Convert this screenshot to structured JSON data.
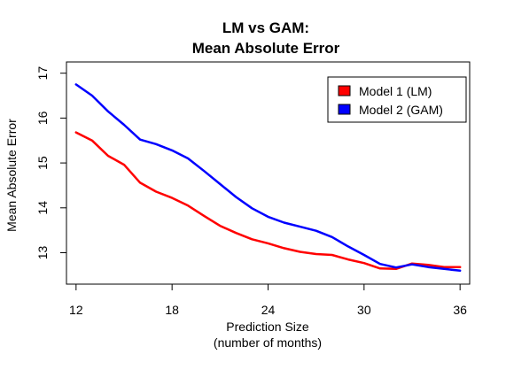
{
  "chart_data": {
    "type": "line",
    "title": [
      "LM vs GAM:",
      "Mean Absolute Error"
    ],
    "xlabel": [
      "Prediction Size",
      "(number of months)"
    ],
    "ylabel": "Mean Absolute Error",
    "xlim": [
      11.4,
      36.6
    ],
    "ylim": [
      12.3,
      17.25
    ],
    "x_ticks": [
      12,
      18,
      24,
      30,
      36
    ],
    "y_ticks": [
      13,
      14,
      15,
      16,
      17
    ],
    "grid": false,
    "legend_position": "top-right",
    "x": [
      12,
      13,
      14,
      15,
      16,
      17,
      18,
      19,
      20,
      21,
      22,
      23,
      24,
      25,
      26,
      27,
      28,
      29,
      30,
      31,
      32,
      33,
      34,
      35,
      36
    ],
    "series": [
      {
        "name": "Model 1 (LM)",
        "color": "#ff0000",
        "values": [
          15.68,
          15.5,
          15.16,
          14.96,
          14.56,
          14.36,
          14.22,
          14.05,
          13.82,
          13.6,
          13.44,
          13.3,
          13.21,
          13.1,
          13.02,
          12.97,
          12.95,
          12.85,
          12.77,
          12.65,
          12.64,
          12.76,
          12.73,
          12.68,
          12.68
        ]
      },
      {
        "name": "Model 2 (GAM)",
        "color": "#0000ff",
        "values": [
          16.75,
          16.5,
          16.15,
          15.85,
          15.52,
          15.42,
          15.28,
          15.1,
          14.82,
          14.53,
          14.24,
          13.99,
          13.8,
          13.67,
          13.58,
          13.49,
          13.35,
          13.14,
          12.95,
          12.75,
          12.67,
          12.74,
          12.68,
          12.64,
          12.6
        ]
      }
    ]
  }
}
